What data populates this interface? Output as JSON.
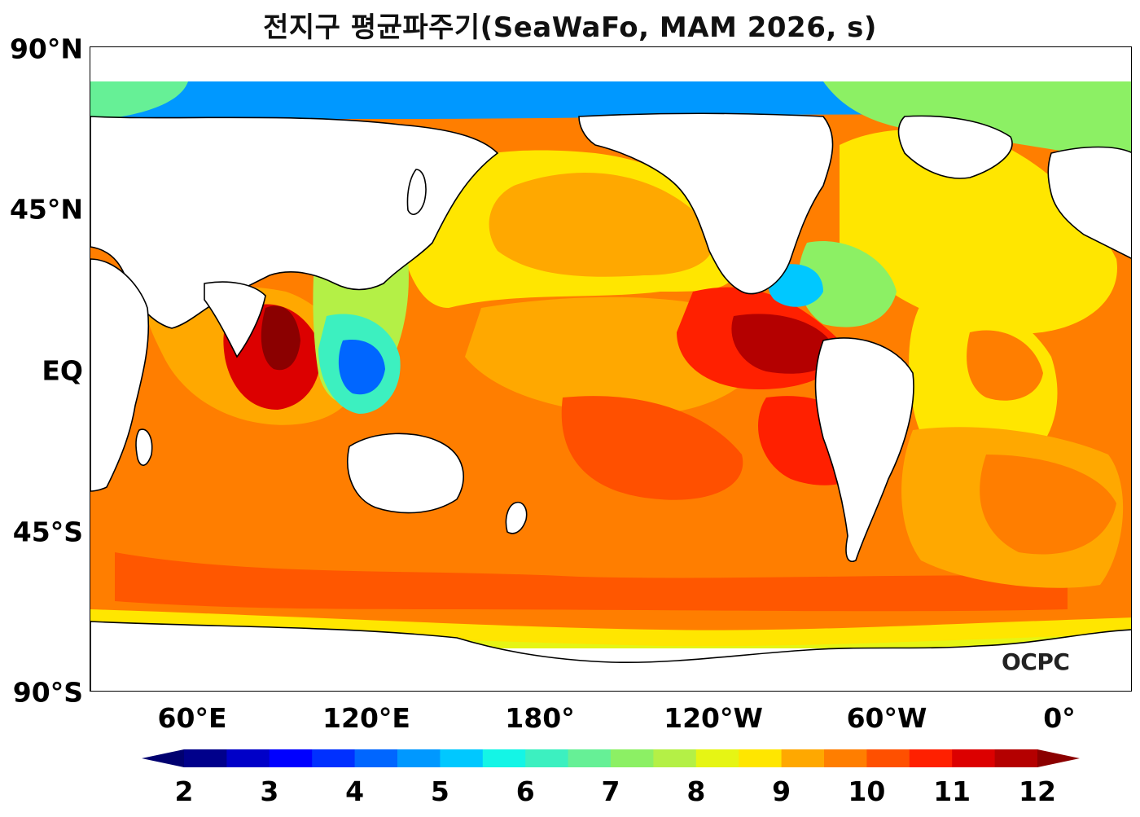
{
  "title": "전지구 평균파주기(SeaWaFo, MAM 2026, s)",
  "map": {
    "projection": "equirectangular",
    "central_longitude": "150°E",
    "lat_ticks": [
      "90°N",
      "45°N",
      "EQ",
      "45°S",
      "90°S"
    ],
    "lon_ticks": [
      "60°E",
      "120°E",
      "180°",
      "120°W",
      "60°W",
      "0°"
    ],
    "coastline_color": "#000000",
    "land_color": "#ffffff"
  },
  "logo": "OCPC",
  "colorbar": {
    "ticks": [
      "2",
      "3",
      "4",
      "5",
      "6",
      "7",
      "8",
      "9",
      "10",
      "11",
      "12"
    ],
    "extend": "both",
    "colors": [
      "#00008b",
      "#0000c8",
      "#0000ff",
      "#0030ff",
      "#0066ff",
      "#0098ff",
      "#00c8ff",
      "#14f5e6",
      "#3cf0c0",
      "#66f096",
      "#8cf064",
      "#b4f046",
      "#e6f514",
      "#ffe600",
      "#ffa800",
      "#ff7e00",
      "#ff5000",
      "#ff2000",
      "#dc0000",
      "#b40000"
    ],
    "under_color": "#000070",
    "over_color": "#8b0000"
  },
  "fields": {
    "regions": [
      {
        "name": "ocean",
        "color": "#ff7e00"
      },
      {
        "name": "indian-north",
        "color": "#dc0000"
      },
      {
        "name": "east-pacific",
        "color": "#b40000"
      },
      {
        "name": "atlantic",
        "color": "#ffe600"
      },
      {
        "name": "north-pacific",
        "color": "#ffa800"
      },
      {
        "name": "southern",
        "color": "#ff7e00"
      },
      {
        "name": "arctic",
        "color": "#0098ff"
      },
      {
        "name": "coastal",
        "color": "#3cf0c0"
      }
    ]
  }
}
